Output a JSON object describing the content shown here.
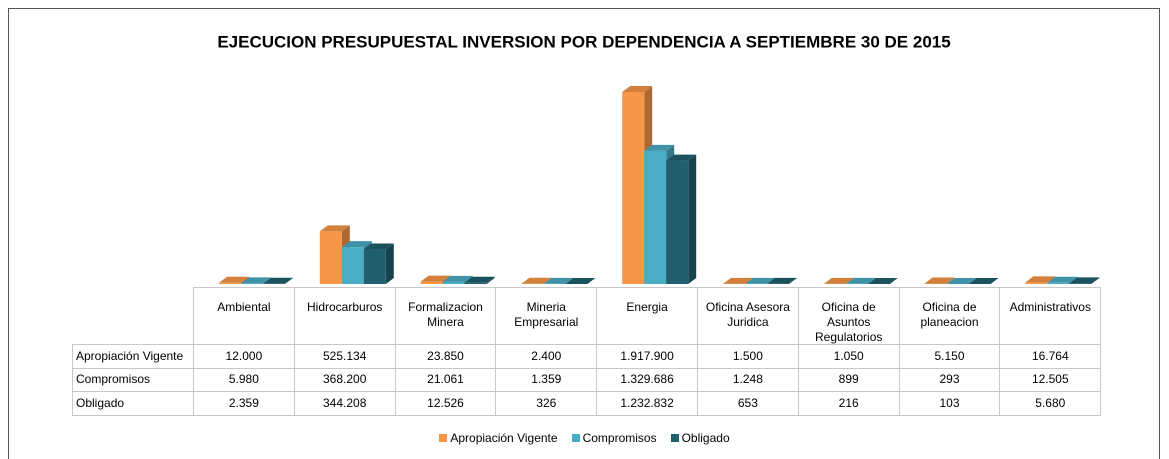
{
  "chart_data": {
    "type": "bar3d",
    "title": "EJECUCION PRESUPUESTAL INVERSION POR DEPENDENCIA A SEPTIEMBRE 30 DE 2015",
    "categories": [
      "Ambiental",
      "Hidrocarburos",
      "Formalizacion Minera",
      "Mineria Empresarial",
      "Energia",
      "Oficina Asesora Juridica",
      "Oficina de Asuntos Regulatorios",
      "Oficina de planeacion",
      "Administrativos"
    ],
    "series": [
      {
        "name": "Apropiación Vigente",
        "color": "#f79646",
        "values": [
          12000,
          525134,
          23850,
          2400,
          1917900,
          1500,
          1050,
          5150,
          16764
        ],
        "value_labels": [
          "12.000",
          "525.134",
          "23.850",
          "2.400",
          "1.917.900",
          "1.500",
          "1.050",
          "5.150",
          "16.764"
        ]
      },
      {
        "name": "Compromisos",
        "color": "#4bacc6",
        "values": [
          5980,
          368200,
          21061,
          1359,
          1329686,
          1248,
          899,
          293,
          12505
        ],
        "value_labels": [
          "5.980",
          "368.200",
          "21.061",
          "1.359",
          "1.329.686",
          "1.248",
          "899",
          "293",
          "12.505"
        ]
      },
      {
        "name": "Obligado",
        "color": "#215f6f",
        "values": [
          2359,
          344208,
          12526,
          326,
          1232832,
          653,
          216,
          103,
          5680
        ],
        "value_labels": [
          "2.359",
          "344.208",
          "12.526",
          "326",
          "1.232.832",
          "653",
          "216",
          "103",
          "5.680"
        ]
      }
    ],
    "legend": "bottom"
  }
}
